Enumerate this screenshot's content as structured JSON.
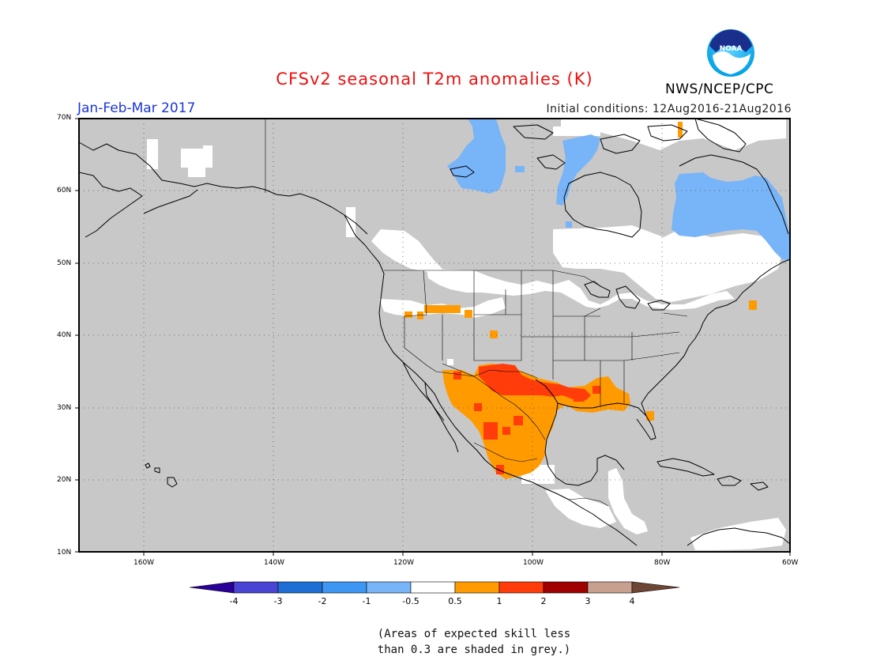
{
  "header": {
    "title": "CFSv2 seasonal T2m anomalies (K)",
    "season": "Jan-Feb-Mar 2017",
    "initial_conditions": "Initial conditions: 12Aug2016-21Aug2016",
    "agency": "NWS/NCEP/CPC",
    "logo_text": "NOAA"
  },
  "map": {
    "lat_labels": [
      "70N",
      "60N",
      "50N",
      "40N",
      "30N",
      "20N",
      "10N"
    ],
    "lon_labels": [
      "160W",
      "140W",
      "120W",
      "100W",
      "80W",
      "60W"
    ],
    "extent": {
      "lon_min": -170,
      "lon_max": -60,
      "lat_min": 10,
      "lat_max": 70
    },
    "colors": {
      "no_skill_grey": "#c8c8c8",
      "neutral_white": "#ffffff",
      "cold_light": "#78b4f8",
      "warm_orange": "#ff9b00",
      "warm_red": "#ff3c0a"
    }
  },
  "colorbar": {
    "ticks": [
      "-4",
      "-3",
      "-2",
      "-1",
      "-0.5",
      "0.5",
      "1",
      "2",
      "3",
      "4"
    ],
    "colors": [
      "#2a0098",
      "#4a44d4",
      "#1f6ed4",
      "#3c96f2",
      "#78b4f8",
      "#ffffff",
      "#ff9b00",
      "#ff3c0a",
      "#a00000",
      "#c8a090",
      "#6e4634"
    ]
  },
  "footnote": {
    "line1": "(Areas of expected skill less",
    "line2": "than 0.3 are shaded in grey.)"
  }
}
